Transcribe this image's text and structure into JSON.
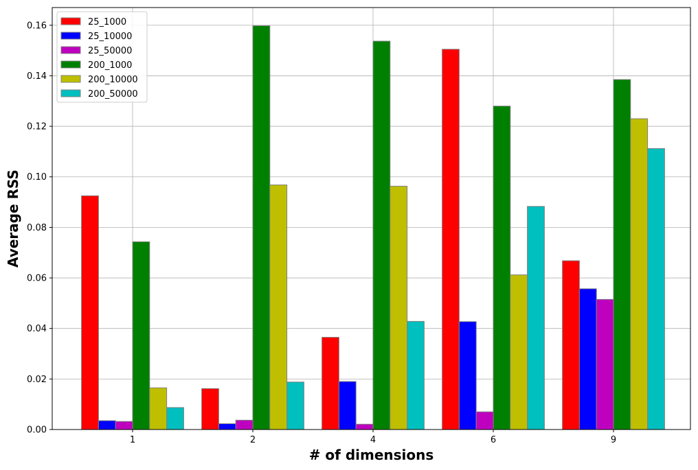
{
  "chart_data": {
    "type": "bar",
    "title": "",
    "xlabel": "# of dimensions",
    "ylabel": "Average RSS",
    "categories": [
      "1",
      "2",
      "4",
      "6",
      "9"
    ],
    "ylim": [
      0,
      0.167
    ],
    "yticks": [
      0.0,
      0.02,
      0.04,
      0.06,
      0.08,
      0.1,
      0.12,
      0.14,
      0.16
    ],
    "ytick_labels": [
      "0.00",
      "0.02",
      "0.04",
      "0.06",
      "0.08",
      "0.10",
      "0.12",
      "0.14",
      "0.16"
    ],
    "grid": true,
    "legend_position": "top-left",
    "series": [
      {
        "name": "25_1000",
        "color": "#ff0000",
        "values": [
          0.0925,
          0.0162,
          0.0365,
          0.1505,
          0.0668
        ]
      },
      {
        "name": "25_10000",
        "color": "#0000ff",
        "values": [
          0.0035,
          0.0023,
          0.019,
          0.0427,
          0.0557
        ]
      },
      {
        "name": "25_50000",
        "color": "#bf00bf",
        "values": [
          0.0032,
          0.0037,
          0.0021,
          0.007,
          0.0515
        ]
      },
      {
        "name": "200_1000",
        "color": "#008000",
        "values": [
          0.0743,
          0.1598,
          0.1537,
          0.128,
          0.1385
        ]
      },
      {
        "name": "200_10000",
        "color": "#bfbf00",
        "values": [
          0.0165,
          0.0968,
          0.0963,
          0.0612,
          0.123
        ]
      },
      {
        "name": "200_50000",
        "color": "#00bfbf",
        "values": [
          0.0087,
          0.0188,
          0.0428,
          0.0883,
          0.1112
        ]
      }
    ]
  }
}
